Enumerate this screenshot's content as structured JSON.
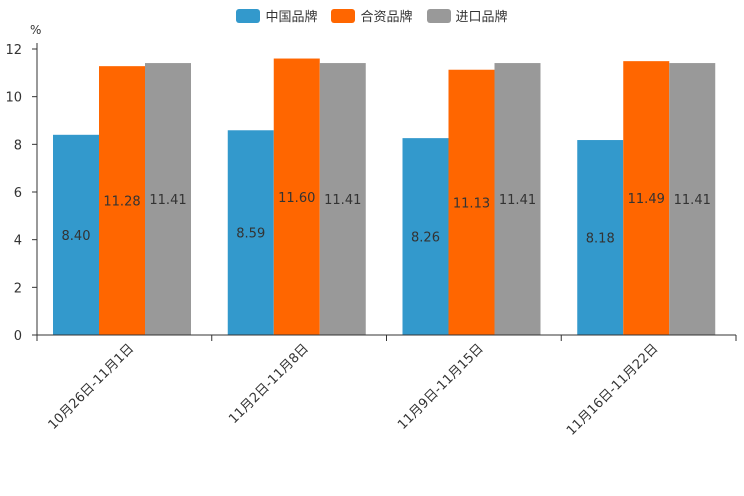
{
  "chart_data": {
    "type": "bar",
    "title": "",
    "ylabel": "%",
    "xlabel": "",
    "ylim": [
      0,
      12
    ],
    "yticks": [
      0,
      2,
      4,
      6,
      8,
      10,
      12
    ],
    "grid": false,
    "legend_position": "top-center",
    "categories": [
      "10月26日-11月1日",
      "11月2日-11月8日",
      "11月9日-11月15日",
      "11月16日-11月22日"
    ],
    "series": [
      {
        "name": "中国品牌",
        "color": "#3399cc",
        "values": [
          8.4,
          8.59,
          8.26,
          8.18
        ],
        "labels": [
          "8.40",
          "8.59",
          "8.26",
          "8.18"
        ]
      },
      {
        "name": "合资品牌",
        "color": "#ff6600",
        "values": [
          11.28,
          11.6,
          11.13,
          11.49
        ],
        "labels": [
          "11.28",
          "11.60",
          "11.13",
          "11.49"
        ]
      },
      {
        "name": "进口品牌",
        "color": "#999999",
        "values": [
          11.41,
          11.41,
          11.41,
          11.41
        ],
        "labels": [
          "11.41",
          "11.41",
          "11.41",
          "11.41"
        ]
      }
    ]
  }
}
